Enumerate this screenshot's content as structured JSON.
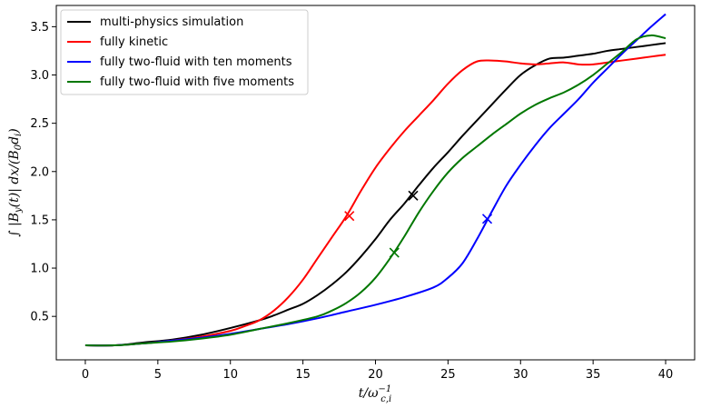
{
  "chart_data": {
    "type": "line",
    "xlabel": "t/ω_{c,i}^{-1}",
    "ylabel": "∫ |B_y(t)| dx/(B_0 d_i)",
    "xlim": [
      -2,
      42
    ],
    "ylim": [
      0.05,
      3.72
    ],
    "xticks": [
      0,
      5,
      10,
      15,
      20,
      25,
      30,
      35,
      40
    ],
    "yticks": [
      0.5,
      1.0,
      1.5,
      2.0,
      2.5,
      3.0,
      3.5
    ],
    "xtick_labels": [
      "0",
      "5",
      "10",
      "15",
      "20",
      "25",
      "30",
      "35",
      "40"
    ],
    "ytick_labels": [
      "0.5",
      "1.0",
      "1.5",
      "2.0",
      "2.5",
      "3.0",
      "3.5"
    ],
    "grid": false,
    "legend": "top-left",
    "series": [
      {
        "name": "multi-physics simulation",
        "color": "#000000",
        "x": [
          0,
          2,
          4,
          6,
          8,
          10,
          12,
          13,
          14,
          15,
          16,
          17,
          18,
          19,
          20,
          21,
          22,
          23,
          24,
          25,
          26,
          27,
          28,
          29,
          30,
          31,
          32,
          33,
          34,
          35,
          36,
          37,
          38,
          39,
          40
        ],
        "y": [
          0.2,
          0.2,
          0.23,
          0.26,
          0.31,
          0.38,
          0.46,
          0.51,
          0.57,
          0.63,
          0.72,
          0.83,
          0.96,
          1.12,
          1.3,
          1.5,
          1.67,
          1.86,
          2.04,
          2.2,
          2.37,
          2.53,
          2.69,
          2.85,
          3.0,
          3.1,
          3.17,
          3.18,
          3.2,
          3.22,
          3.25,
          3.27,
          3.29,
          3.31,
          3.33
        ],
        "marker": [
          22.6,
          1.75
        ]
      },
      {
        "name": "fully kinetic",
        "color": "#ff0000",
        "x": [
          0,
          2,
          4,
          6,
          8,
          10,
          11,
          12,
          13,
          14,
          15,
          16,
          17,
          18,
          19,
          20,
          21,
          22,
          23,
          24,
          25,
          26,
          27,
          28,
          29,
          30,
          31,
          32,
          33,
          34,
          35,
          36,
          37,
          38,
          39,
          40
        ],
        "y": [
          0.2,
          0.2,
          0.22,
          0.25,
          0.29,
          0.35,
          0.4,
          0.46,
          0.56,
          0.7,
          0.88,
          1.1,
          1.32,
          1.54,
          1.8,
          2.04,
          2.24,
          2.42,
          2.58,
          2.74,
          2.91,
          3.05,
          3.14,
          3.15,
          3.14,
          3.12,
          3.11,
          3.12,
          3.13,
          3.11,
          3.11,
          3.13,
          3.15,
          3.17,
          3.19,
          3.21
        ],
        "marker": [
          18.2,
          1.54
        ]
      },
      {
        "name": "fully two-fluid with ten moments",
        "color": "#0000ff",
        "x": [
          0,
          2,
          4,
          6,
          8,
          10,
          12,
          14,
          16,
          18,
          20,
          22,
          24,
          25,
          26,
          27,
          28,
          29,
          30,
          31,
          32,
          33,
          34,
          35,
          36,
          37,
          38,
          39,
          40
        ],
        "y": [
          0.2,
          0.2,
          0.22,
          0.25,
          0.28,
          0.32,
          0.37,
          0.42,
          0.48,
          0.55,
          0.62,
          0.7,
          0.8,
          0.9,
          1.05,
          1.3,
          1.58,
          1.85,
          2.07,
          2.27,
          2.45,
          2.6,
          2.75,
          2.92,
          3.07,
          3.22,
          3.36,
          3.5,
          3.63
        ],
        "marker": [
          27.7,
          1.51
        ]
      },
      {
        "name": "fully two-fluid with five moments",
        "color": "#007700",
        "x": [
          0,
          2,
          4,
          6,
          8,
          10,
          12,
          14,
          16,
          17,
          18,
          19,
          20,
          21,
          22,
          23,
          24,
          25,
          26,
          27,
          28,
          29,
          30,
          31,
          32,
          33,
          34,
          35,
          36,
          37,
          38,
          39,
          40
        ],
        "y": [
          0.2,
          0.2,
          0.22,
          0.24,
          0.27,
          0.31,
          0.37,
          0.43,
          0.5,
          0.56,
          0.64,
          0.75,
          0.9,
          1.1,
          1.33,
          1.58,
          1.8,
          1.99,
          2.14,
          2.26,
          2.38,
          2.49,
          2.6,
          2.69,
          2.76,
          2.82,
          2.9,
          3.0,
          3.12,
          3.24,
          3.37,
          3.41,
          3.38
        ],
        "marker": [
          21.3,
          1.16
        ]
      }
    ]
  }
}
